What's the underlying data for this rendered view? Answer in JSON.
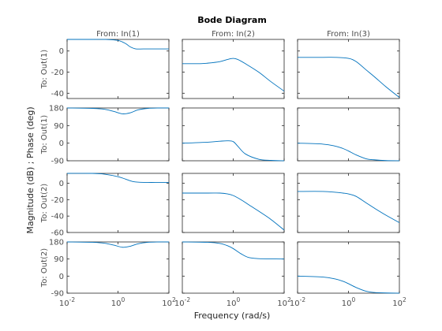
{
  "chart_data": {
    "type": "line",
    "title": "Bode Diagram",
    "xlabel": "Frequency  (rad/s)",
    "ylabel": "Magnitude (dB) ; Phase (deg)",
    "x_scale": "log",
    "xlim": [
      0.01,
      100
    ],
    "x_tick_values": [
      0.01,
      1,
      100
    ],
    "x_tick_labels": [
      {
        "base": "10",
        "exp": "-2"
      },
      {
        "base": "10",
        "exp": "0"
      },
      {
        "base": "10",
        "exp": "2"
      }
    ],
    "line_color": "#0072bd",
    "grid": false,
    "columns": [
      "From: In(1)",
      "From: In(2)",
      "From: In(3)"
    ],
    "output_labels": [
      "To: Out(1)",
      "To: Out(1)",
      "To: Out(2)",
      "To: Out(2)"
    ],
    "rows": [
      {
        "kind": "magnitude",
        "ylim": [
          -45,
          11
        ],
        "yticks": [
          0,
          -20,
          -40
        ],
        "ytick_labels": [
          "0",
          "-20",
          "-40"
        ]
      },
      {
        "kind": "phase",
        "ylim": [
          -90,
          180
        ],
        "yticks": [
          180,
          90,
          0,
          -90
        ],
        "ytick_labels": [
          "180",
          "90",
          "0",
          "-90"
        ]
      },
      {
        "kind": "magnitude",
        "ylim": [
          -60,
          12
        ],
        "yticks": [
          0,
          -20,
          -40,
          -60
        ],
        "ytick_labels": [
          "0",
          "-20",
          "-40",
          "-60"
        ]
      },
      {
        "kind": "phase",
        "ylim": [
          -90,
          180
        ],
        "yticks": [
          180,
          90,
          0,
          -90
        ],
        "ytick_labels": [
          "180",
          "90",
          "0",
          "-90"
        ]
      }
    ],
    "series": [
      {
        "row": 0,
        "col": 0,
        "x": [
          0.01,
          0.1,
          0.3,
          1,
          2,
          3,
          5,
          10,
          30,
          100
        ],
        "y": [
          11,
          11,
          11,
          10,
          7,
          4,
          2,
          2,
          2,
          2
        ]
      },
      {
        "row": 0,
        "col": 1,
        "x": [
          0.01,
          0.05,
          0.1,
          0.3,
          0.6,
          1,
          1.5,
          3,
          10,
          30,
          100
        ],
        "y": [
          -12,
          -12,
          -11.5,
          -10,
          -8,
          -7,
          -8,
          -12,
          -20,
          -29,
          -38
        ]
      },
      {
        "row": 0,
        "col": 2,
        "x": [
          0.01,
          0.1,
          0.3,
          1,
          2,
          5,
          10,
          30,
          100
        ],
        "y": [
          -6,
          -6,
          -6,
          -7,
          -10,
          -18,
          -24,
          -34,
          -44
        ]
      },
      {
        "row": 1,
        "col": 0,
        "x": [
          0.01,
          0.1,
          0.3,
          0.7,
          1.5,
          3,
          6,
          15,
          40,
          100
        ],
        "y": [
          180,
          178,
          173,
          162,
          150,
          155,
          170,
          178,
          180,
          180
        ]
      },
      {
        "row": 1,
        "col": 1,
        "x": [
          0.01,
          0.1,
          0.3,
          0.6,
          1,
          1.5,
          3,
          10,
          30,
          100
        ],
        "y": [
          0,
          5,
          10,
          12,
          8,
          -15,
          -55,
          -82,
          -88,
          -90
        ]
      },
      {
        "row": 1,
        "col": 2,
        "x": [
          0.01,
          0.1,
          0.3,
          0.6,
          1,
          2,
          5,
          10,
          30,
          100
        ],
        "y": [
          0,
          -5,
          -15,
          -27,
          -40,
          -60,
          -80,
          -85,
          -89,
          -90
        ]
      },
      {
        "row": 2,
        "col": 0,
        "x": [
          0.01,
          0.1,
          0.3,
          1,
          2,
          4,
          10,
          30,
          100
        ],
        "y": [
          12,
          12,
          11,
          8,
          5,
          2,
          1,
          1,
          1
        ]
      },
      {
        "row": 2,
        "col": 1,
        "x": [
          0.01,
          0.1,
          0.3,
          0.6,
          1,
          2,
          5,
          10,
          30,
          100
        ],
        "y": [
          -12,
          -12,
          -12,
          -13,
          -15,
          -20,
          -28,
          -34,
          -44,
          -57
        ]
      },
      {
        "row": 2,
        "col": 2,
        "x": [
          0.01,
          0.1,
          0.3,
          0.6,
          1,
          2,
          5,
          10,
          30,
          100
        ],
        "y": [
          -10,
          -10,
          -11,
          -12,
          -13,
          -16,
          -24,
          -30,
          -39,
          -48
        ]
      },
      {
        "row": 3,
        "col": 0,
        "x": [
          0.01,
          0.1,
          0.3,
          0.7,
          1.5,
          3,
          6,
          15,
          40,
          100
        ],
        "y": [
          180,
          178,
          173,
          163,
          152,
          157,
          170,
          178,
          180,
          180
        ]
      },
      {
        "row": 3,
        "col": 1,
        "x": [
          0.01,
          0.1,
          0.3,
          0.6,
          1,
          2,
          4,
          10,
          30,
          100
        ],
        "y": [
          180,
          178,
          172,
          160,
          145,
          118,
          98,
          92,
          91,
          90
        ]
      },
      {
        "row": 3,
        "col": 2,
        "x": [
          0.01,
          0.1,
          0.3,
          0.6,
          1,
          2,
          5,
          10,
          30,
          100
        ],
        "y": [
          0,
          -5,
          -15,
          -27,
          -40,
          -60,
          -80,
          -86,
          -89,
          -90
        ]
      }
    ]
  }
}
